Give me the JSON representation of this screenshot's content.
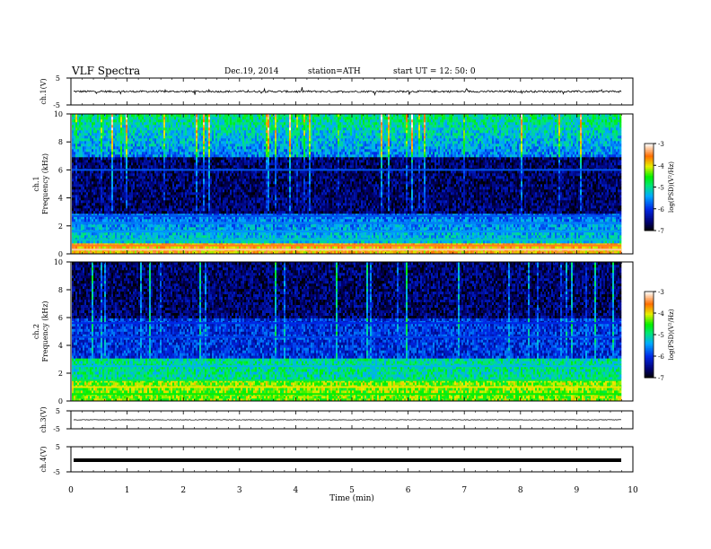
{
  "header": {
    "title": "VLF  Spectra",
    "date": "Dec.19, 2014",
    "station": "station=ATH",
    "start": "start  UT =   12: 50: 0"
  },
  "chart_data": [
    {
      "type": "line",
      "panel": "ch1-waveform",
      "ylabel": "ch.1(V)",
      "ylim": [
        -5,
        5
      ],
      "yticks": [
        "5",
        "-5"
      ],
      "xlim": [
        0,
        10
      ],
      "baseline": 0,
      "description_values": {
        "mean": 0,
        "approx_amplitude": 0.3
      }
    },
    {
      "type": "heatmap",
      "panel": "ch1-spectrogram",
      "ylabel_top": "ch.1",
      "ylabel": "Frequency  (kHz)",
      "ylim": [
        0,
        10
      ],
      "yticks": [
        "0",
        "2",
        "4",
        "6",
        "8",
        "10"
      ],
      "xlim": [
        0,
        9.8
      ],
      "colorbar": {
        "label": "log(PSD)(V²/Hz)",
        "range": [
          -7,
          -3
        ],
        "ticks": [
          "-3",
          "-4",
          "-5",
          "-6",
          "-7"
        ]
      },
      "bands": [
        {
          "freq_khz": 0.3,
          "level": -3.2
        },
        {
          "freq_khz": 0.6,
          "level": -3.5
        },
        {
          "freq_khz": 1.0,
          "level": -5.2
        },
        {
          "freq_khz": 1.6,
          "level": -5.5
        },
        {
          "freq_khz": 2.2,
          "level": -5.6
        },
        {
          "freq_khz": 2.7,
          "level": -5.8
        },
        {
          "freq_khz": 6.0,
          "level": -5.8
        }
      ]
    },
    {
      "type": "heatmap",
      "panel": "ch2-spectrogram",
      "ylabel_top": "ch.2",
      "ylabel": "Frequency  (kHz)",
      "ylim": [
        0,
        10
      ],
      "yticks": [
        "0",
        "2",
        "4",
        "6",
        "8",
        "10"
      ],
      "xlim": [
        0,
        9.8
      ],
      "colorbar": {
        "label": "log(PSD)(V²/Hz)",
        "range": [
          -7,
          -3
        ],
        "ticks": [
          "-3",
          "-4",
          "-5",
          "-6",
          "-7"
        ]
      },
      "bands": [
        {
          "freq_khz": 0.5,
          "level": -4.5
        },
        {
          "freq_khz": 1.0,
          "level": -4.0
        },
        {
          "freq_khz": 1.5,
          "level": -4.8
        },
        {
          "freq_khz": 2.5,
          "level": -5.3
        },
        {
          "freq_khz": 4.6,
          "level": -5.9
        },
        {
          "freq_khz": 5.6,
          "level": -6.0
        }
      ]
    },
    {
      "type": "line",
      "panel": "ch3-waveform",
      "ylabel": "ch.3(V)",
      "ylim": [
        -5,
        5
      ],
      "yticks": [
        "5",
        "-5"
      ],
      "xlim": [
        0,
        10
      ],
      "baseline": 0
    },
    {
      "type": "line",
      "panel": "ch4-waveform",
      "ylabel": "ch.4(V)",
      "ylim": [
        -5,
        5
      ],
      "yticks": [
        "5",
        "-5"
      ],
      "xlim": [
        0,
        10
      ],
      "baseline": 0
    }
  ],
  "x_axis": {
    "label": "Time  (min)",
    "ticks": [
      "0",
      "1",
      "2",
      "3",
      "4",
      "5",
      "6",
      "7",
      "8",
      "9",
      "10"
    ]
  }
}
